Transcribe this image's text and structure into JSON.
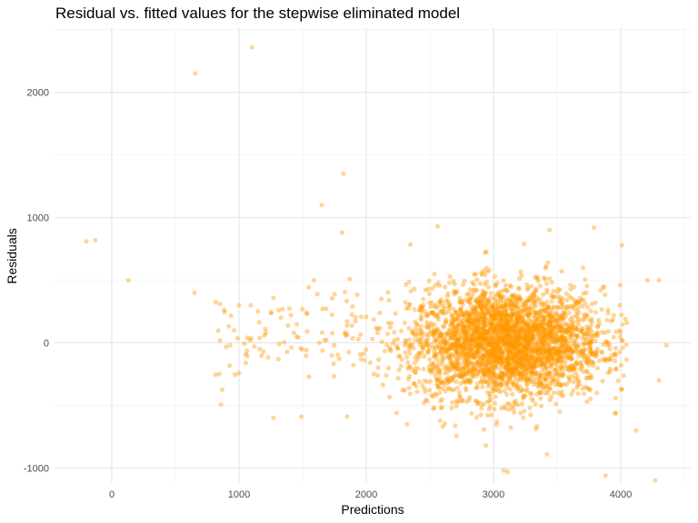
{
  "chart_data": {
    "type": "scatter",
    "title": "Residual vs. fitted values for the stepwise eliminated model",
    "xlabel": "Predictions",
    "ylabel": "Residuals",
    "xlim": [
      -450,
      4550
    ],
    "ylim": [
      -1120,
      2520
    ],
    "x_ticks": [
      0,
      1000,
      2000,
      3000,
      4000
    ],
    "x_tick_labels": [
      "0",
      "1000",
      "2000",
      "3000",
      "4000"
    ],
    "y_ticks": [
      -1000,
      0,
      1000,
      2000
    ],
    "y_tick_labels": [
      "-1000",
      "0",
      "1000",
      "2000"
    ],
    "grid": true,
    "point_color": "#FF9900",
    "point_opacity": 0.4,
    "outlier_points": [
      {
        "x": 1100,
        "y": 2360
      },
      {
        "x": 655,
        "y": 2150
      },
      {
        "x": 1820,
        "y": 1350
      },
      {
        "x": 1650,
        "y": 1100
      },
      {
        "x": 1810,
        "y": 880
      },
      {
        "x": -200,
        "y": 810
      },
      {
        "x": -130,
        "y": 820
      },
      {
        "x": 130,
        "y": 500
      },
      {
        "x": 650,
        "y": 400
      },
      {
        "x": 850,
        "y": 310
      },
      {
        "x": 1000,
        "y": 300
      },
      {
        "x": 1330,
        "y": 200
      },
      {
        "x": 1530,
        "y": 240
      },
      {
        "x": 1750,
        "y": 390
      },
      {
        "x": 1870,
        "y": 510
      },
      {
        "x": 1270,
        "y": -600
      },
      {
        "x": 1490,
        "y": -590
      },
      {
        "x": 1850,
        "y": -590
      },
      {
        "x": 930,
        "y": -20
      },
      {
        "x": 1120,
        "y": -30
      },
      {
        "x": 1310,
        "y": -130
      },
      {
        "x": 1200,
        "y": 60
      },
      {
        "x": 2560,
        "y": 930
      },
      {
        "x": 3440,
        "y": 900
      },
      {
        "x": 3790,
        "y": 920
      },
      {
        "x": 4010,
        "y": 780
      },
      {
        "x": 4210,
        "y": 500
      },
      {
        "x": 4300,
        "y": 500
      },
      {
        "x": 4360,
        "y": -20
      },
      {
        "x": 4270,
        "y": -1100
      },
      {
        "x": 3880,
        "y": -1060
      },
      {
        "x": 3080,
        "y": -1020
      },
      {
        "x": 3110,
        "y": -1030
      },
      {
        "x": 3420,
        "y": -890
      },
      {
        "x": 2940,
        "y": -820
      },
      {
        "x": 3960,
        "y": -440
      },
      {
        "x": 4300,
        "y": -300
      },
      {
        "x": 4120,
        "y": -700
      },
      {
        "x": 2600,
        "y": -670
      },
      {
        "x": 2320,
        "y": -650
      }
    ],
    "cluster": {
      "n_points": 3200,
      "x_mean": 3100,
      "x_sd": 380,
      "y_mean": 0,
      "y_sd": 220
    }
  }
}
